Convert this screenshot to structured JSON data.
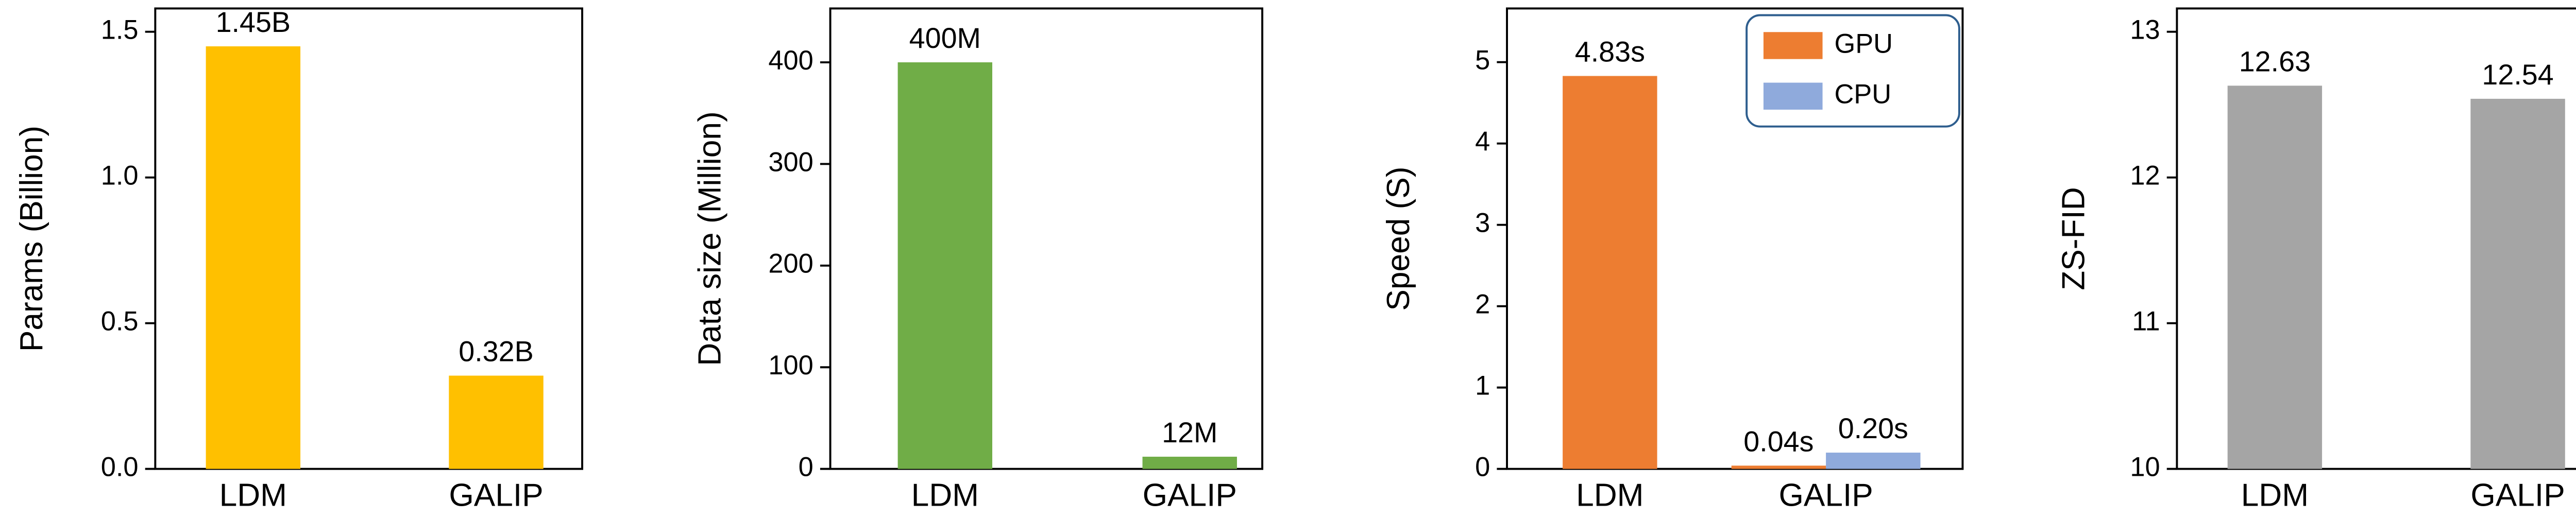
{
  "chart_data": [
    {
      "type": "bar",
      "y_label": "Params (Billion)",
      "categories": [
        "LDM",
        "GALIP"
      ],
      "values": [
        1.45,
        0.32
      ],
      "value_labels": [
        "1.45B",
        "0.32B"
      ],
      "color": "#ffc000",
      "ylim": [
        0,
        1.58
      ],
      "yticks": [
        {
          "value": 0,
          "label": "0.0"
        },
        0.5,
        {
          "value": 1,
          "label": "1.0"
        },
        1.5
      ]
    },
    {
      "type": "bar",
      "y_label": "Data size (Million)",
      "categories": [
        "LDM",
        "GALIP"
      ],
      "values": [
        400,
        12
      ],
      "value_labels": [
        "400M",
        "12M"
      ],
      "color": "#70ad47",
      "ylim": [
        0,
        453
      ],
      "yticks": [
        0,
        100,
        200,
        300,
        400
      ]
    },
    {
      "type": "bar",
      "y_label": "Speed (S)",
      "categories": [
        "LDM",
        "GALIP"
      ],
      "series": [
        {
          "name": "GPU",
          "color": "#ed7d31",
          "values": [
            4.83,
            0.04
          ],
          "value_labels": [
            "4.83s",
            "0.04s"
          ]
        },
        {
          "name": "CPU",
          "color": "#8faadc",
          "values": [
            null,
            0.2
          ],
          "value_labels": [
            null,
            "0.20s"
          ]
        }
      ],
      "legend": "upper right",
      "ylim": [
        0,
        5.66
      ],
      "yticks": [
        0,
        1,
        2,
        3,
        4,
        5
      ]
    },
    {
      "type": "bar",
      "y_label": "ZS-FID",
      "categories": [
        "LDM",
        "GALIP"
      ],
      "values": [
        12.63,
        12.54
      ],
      "value_labels": [
        "12.63",
        "12.54"
      ],
      "color": "#a5a5a5",
      "ylim": [
        10,
        13.16
      ],
      "yticks": [
        10,
        11,
        12,
        13
      ]
    }
  ]
}
